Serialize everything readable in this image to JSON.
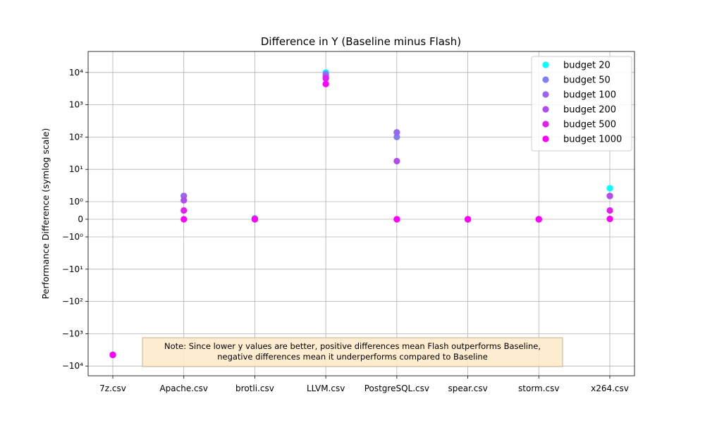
{
  "chart_data": {
    "type": "scatter",
    "title": "Difference in Y (Baseline minus Flash)",
    "xlabel": "",
    "ylabel": "Performance Difference (symlog scale)",
    "yscale": "symlog",
    "ylim": [
      -14000,
      30000
    ],
    "categories": [
      "7z.csv",
      "Apache.csv",
      "brotli.csv",
      "LLVM.csv",
      "PostgreSQL.csv",
      "spear.csv",
      "storm.csv",
      "x264.csv"
    ],
    "ytick_labels": [
      "10⁴",
      "10³",
      "10²",
      "10¹",
      "10⁰",
      "0",
      "−10⁰",
      "−10¹",
      "−10²",
      "−10³",
      "−10⁴"
    ],
    "grid": true,
    "legend_position": "upper right",
    "series": [
      {
        "name": "budget 20",
        "color": "#00ffff",
        "values": [
          -4500,
          1.5,
          0.05,
          10000,
          140,
          0,
          0,
          2.6
        ]
      },
      {
        "name": "budget 50",
        "color": "#7f80f5",
        "values": [
          -4500,
          1.5,
          0.05,
          9000,
          100,
          0,
          0,
          1.5
        ]
      },
      {
        "name": "budget 100",
        "color": "#9966f0",
        "values": [
          -4500,
          1.5,
          0.0,
          8000,
          140,
          0,
          0,
          1.5
        ]
      },
      {
        "name": "budget 200",
        "color": "#b24cec",
        "values": [
          -4500,
          1.1,
          0.0,
          7000,
          18,
          0,
          0,
          1.5
        ]
      },
      {
        "name": "budget 500",
        "color": "#e21ef3",
        "values": [
          -4500,
          0.5,
          0.0,
          6500,
          0,
          0,
          0,
          0.5
        ]
      },
      {
        "name": "budget 1000",
        "color": "#ff00ff",
        "values": [
          -4500,
          0.0,
          0.0,
          4400,
          0,
          0,
          0,
          0.02
        ]
      }
    ],
    "annotation": {
      "lines": [
        "Note: Since lower y values are better, positive differences mean Flash outperforms Baseline,",
        "negative differences mean it underperforms compared to Baseline"
      ],
      "background": "#fde9c8"
    }
  }
}
